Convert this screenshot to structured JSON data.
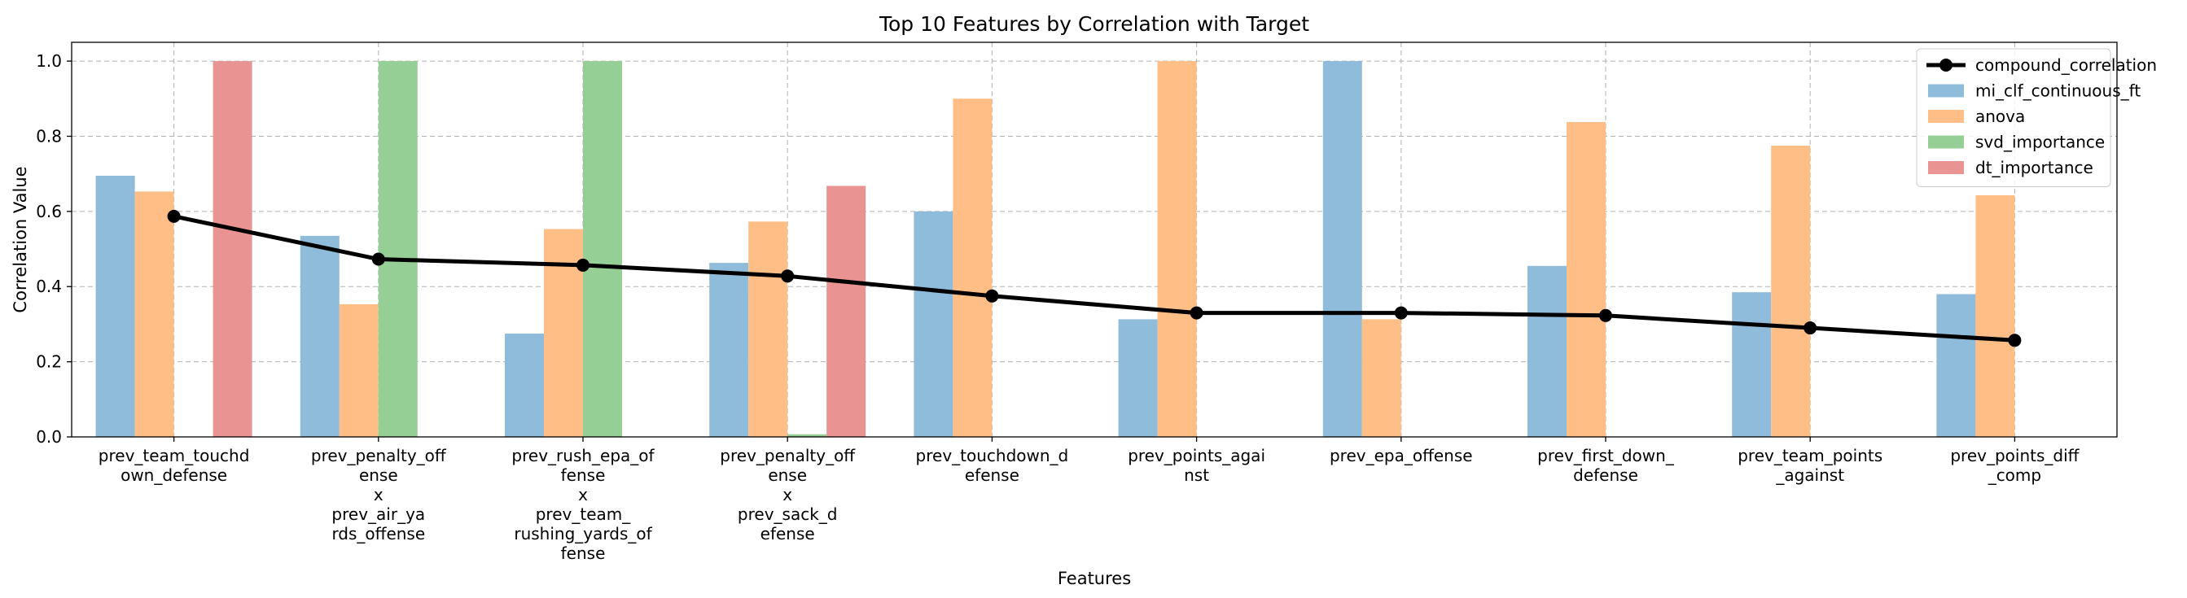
{
  "chart_data": {
    "type": "bar",
    "title": "Top 10 Features by Correlation with Target",
    "xlabel": "Features",
    "ylabel": "Correlation Value",
    "ylim": [
      0,
      1.05
    ],
    "yticks": [
      "0.0",
      "0.2",
      "0.4",
      "0.6",
      "0.8",
      "1.0"
    ],
    "grid": true,
    "legend_position": "top-right",
    "categories": [
      [
        "prev_team_touchd",
        "own_defense"
      ],
      [
        "prev_penalty_off",
        "ense",
        "x",
        "prev_air_ya",
        "rds_offense"
      ],
      [
        "prev_rush_epa_of",
        "fense",
        "x",
        "prev_team_",
        "rushing_yards_of",
        "fense"
      ],
      [
        "prev_penalty_off",
        "ense",
        "x",
        "prev_sack_d",
        "efense"
      ],
      [
        "prev_touchdown_d",
        "efense"
      ],
      [
        "prev_points_agai",
        "nst"
      ],
      [
        "prev_epa_offense"
      ],
      [
        "prev_first_down_",
        "defense"
      ],
      [
        "prev_team_points",
        "_against"
      ],
      [
        "prev_points_diff",
        "_comp"
      ]
    ],
    "series": [
      {
        "name": "mi_clf_continuous_ft",
        "color": "#8fbcdb",
        "values": [
          0.695,
          0.535,
          0.275,
          0.463,
          0.6,
          0.313,
          1.0,
          0.455,
          0.385,
          0.38
        ]
      },
      {
        "name": "anova",
        "color": "#ffbe86",
        "values": [
          0.653,
          0.353,
          0.553,
          0.573,
          0.9,
          1.0,
          0.313,
          0.838,
          0.775,
          0.643
        ]
      },
      {
        "name": "svd_importance",
        "color": "#95cf95",
        "values": [
          0.0,
          1.0,
          1.0,
          0.007,
          0.0,
          0.0,
          0.0,
          0.0,
          0.0,
          0.0
        ]
      },
      {
        "name": "dt_importance",
        "color": "#ea9393",
        "values": [
          1.0,
          0.0,
          0.0,
          0.668,
          0.0,
          0.0,
          0.0,
          0.0,
          0.0,
          0.0
        ]
      }
    ],
    "line": {
      "name": "compound_correlation",
      "color": "#000000",
      "values": [
        0.587,
        0.473,
        0.457,
        0.428,
        0.375,
        0.33,
        0.33,
        0.323,
        0.29,
        0.257
      ]
    }
  }
}
